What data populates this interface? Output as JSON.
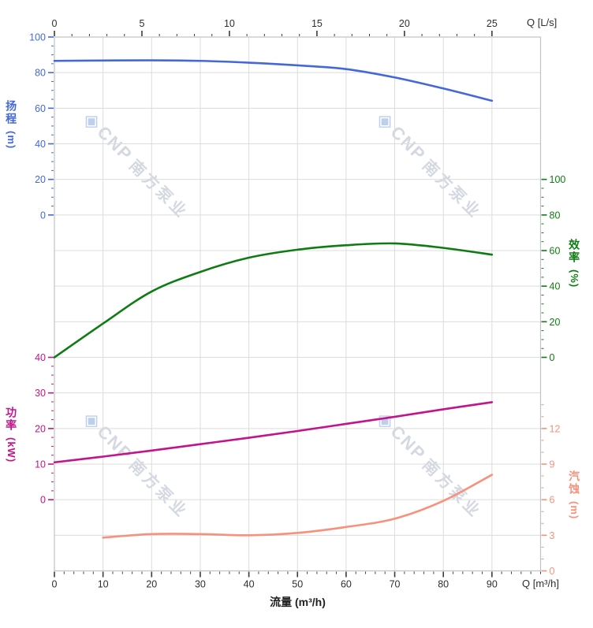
{
  "watermark": {
    "logo": "◈",
    "brand": "CNP",
    "cjk": "南方泵业",
    "logo_color": "#bcd0ee",
    "text_color": "#d3d8e1"
  },
  "colors": {
    "grid": "#dcdcdc",
    "border": "#c2c2c2",
    "x_tick": "#3c3c3c",
    "x_label": "#2e2e2e"
  },
  "chart_data": {
    "type": "line",
    "title": "",
    "x_axis_bottom": {
      "title": "流量 (m³/h)",
      "unit": "Q [m³/h]",
      "majors": [
        0,
        10,
        20,
        30,
        40,
        50,
        60,
        70,
        80,
        90
      ],
      "minor_step": 2,
      "minor_max": 100,
      "range": [
        0,
        100
      ]
    },
    "x_axis_top": {
      "unit": "Q [L/s]",
      "majors": [
        0,
        5,
        10,
        15,
        20,
        25
      ],
      "minor_step": 1,
      "minor_max": 25,
      "range": [
        0,
        27.8
      ]
    },
    "y_axes": [
      {
        "id": "head",
        "title": "扬程",
        "unit": "(m)",
        "side": "left",
        "color": "#4468d8",
        "majors": [
          0,
          20,
          40,
          60,
          80,
          100
        ],
        "minor_step": 5,
        "minor_max": 100,
        "range": [
          0,
          100
        ]
      },
      {
        "id": "efficiency",
        "title": "效率",
        "unit": "(%)",
        "side": "right",
        "color": "#0e7c12",
        "majors": [
          0,
          20,
          40,
          60,
          80,
          100
        ],
        "minor_step": 5,
        "minor_max": 100,
        "range": [
          0,
          100
        ]
      },
      {
        "id": "power",
        "title": "功率",
        "unit": "(kW)",
        "side": "left",
        "color": "#c2148c",
        "majors": [
          0,
          10,
          20,
          30,
          40
        ],
        "minor_step": 2.5,
        "minor_max": 40,
        "range": [
          0,
          40
        ]
      },
      {
        "id": "npsh",
        "title": "汽蚀",
        "unit": "(m)",
        "side": "right",
        "color": "#f8917c",
        "majors": [
          0,
          3,
          6,
          9,
          12
        ],
        "minor_step": 1,
        "minor_max": 14,
        "range": [
          0,
          14
        ]
      }
    ],
    "series": [
      {
        "id": "head-curve",
        "name": "扬程",
        "axis": "head",
        "color": "#4468d8",
        "x": [
          0,
          10,
          20,
          30,
          40,
          50,
          60,
          70,
          80,
          90
        ],
        "y": [
          86.6,
          86.8,
          86.9,
          86.6,
          85.6,
          84.1,
          82.0,
          77.3,
          71.1,
          64.2
        ]
      },
      {
        "id": "efficiency-curve",
        "name": "效率",
        "axis": "efficiency",
        "color": "#0e7c12",
        "x": [
          0,
          10,
          20,
          30,
          40,
          50,
          60,
          70,
          80,
          90
        ],
        "y": [
          0,
          19,
          37,
          48,
          56,
          60.5,
          63,
          64,
          61.5,
          57.7
        ]
      },
      {
        "id": "power-curve",
        "name": "功率",
        "axis": "power",
        "color": "#c2148c",
        "x": [
          0,
          10,
          20,
          30,
          40,
          50,
          60,
          70,
          80,
          90
        ],
        "y": [
          10.5,
          12.1,
          13.8,
          15.6,
          17.4,
          19.3,
          21.3,
          23.3,
          25.4,
          27.4
        ]
      },
      {
        "id": "npsh-curve",
        "name": "汽蚀",
        "axis": "npsh",
        "color": "#f8917c",
        "x": [
          10,
          20,
          30,
          40,
          50,
          60,
          70,
          80,
          90
        ],
        "y": [
          2.8,
          3.1,
          3.1,
          3.0,
          3.2,
          3.7,
          4.4,
          5.9,
          8.1
        ]
      }
    ],
    "grid": true,
    "legend": "none"
  }
}
